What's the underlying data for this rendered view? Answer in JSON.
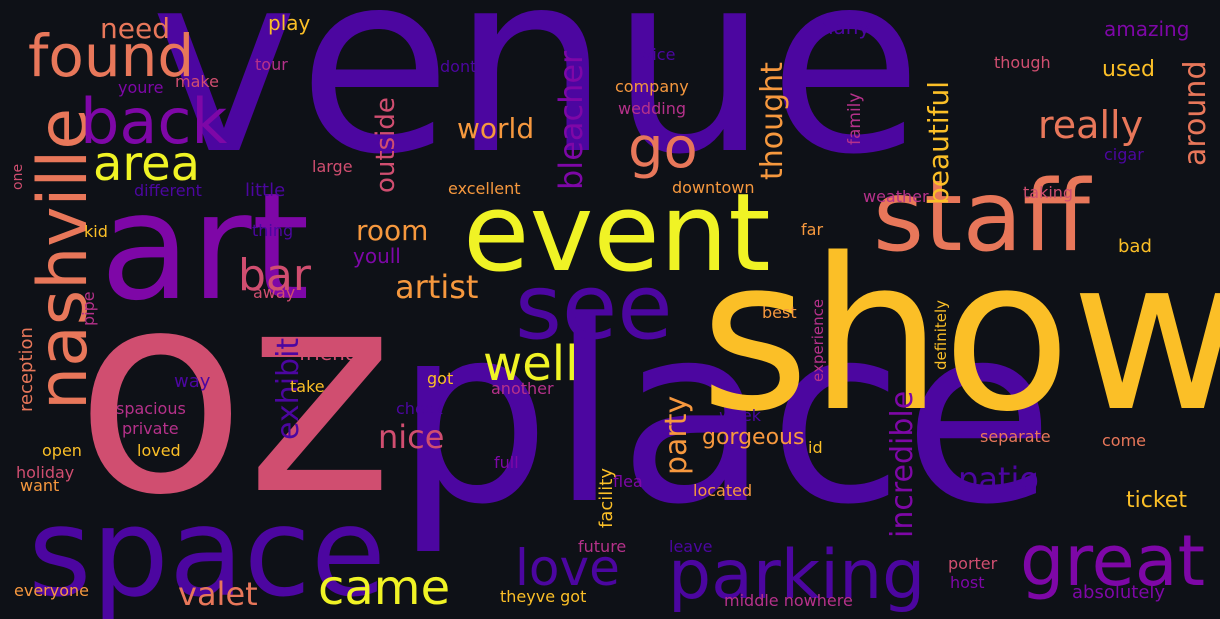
{
  "background": "#0e1117",
  "palette": {
    "indigo": "#4c06a0",
    "purple": "#7e07a7",
    "magenta": "#b5318a",
    "rose": "#d04e70",
    "coral": "#e8775a",
    "orange": "#f6983e",
    "gold": "#fbbf27",
    "yellow": "#f0f325"
  },
  "words": [
    {
      "text": "venue",
      "color": "indigo"
    },
    {
      "text": "oz",
      "color": "rose"
    },
    {
      "text": "place",
      "color": "indigo"
    },
    {
      "text": "show",
      "color": "gold"
    },
    {
      "text": "art",
      "color": "purple"
    },
    {
      "text": "space",
      "color": "indigo"
    },
    {
      "text": "event",
      "color": "yellow"
    },
    {
      "text": "staff",
      "color": "coral"
    },
    {
      "text": "see",
      "color": "indigo"
    },
    {
      "text": "parking",
      "color": "indigo"
    },
    {
      "text": "great",
      "color": "purple"
    },
    {
      "text": "nashville",
      "color": "coral"
    },
    {
      "text": "found",
      "color": "coral"
    },
    {
      "text": "back",
      "color": "purple"
    },
    {
      "text": "area",
      "color": "yellow"
    },
    {
      "text": "go",
      "color": "coral"
    },
    {
      "text": "well",
      "color": "yellow"
    },
    {
      "text": "love",
      "color": "indigo"
    },
    {
      "text": "came",
      "color": "yellow"
    },
    {
      "text": "really",
      "color": "coral"
    },
    {
      "text": "bar",
      "color": "rose"
    },
    {
      "text": "room",
      "color": "orange"
    },
    {
      "text": "artist",
      "color": "orange"
    },
    {
      "text": "nice",
      "color": "rose"
    },
    {
      "text": "valet",
      "color": "coral"
    },
    {
      "text": "world",
      "color": "orange"
    },
    {
      "text": "thought",
      "color": "orange"
    },
    {
      "text": "beautiful",
      "color": "gold"
    },
    {
      "text": "bleacher",
      "color": "purple"
    },
    {
      "text": "outside",
      "color": "rose"
    },
    {
      "text": "need",
      "color": "coral"
    },
    {
      "text": "around",
      "color": "coral"
    },
    {
      "text": "incredible",
      "color": "purple"
    },
    {
      "text": "patio",
      "color": "indigo"
    },
    {
      "text": "party",
      "color": "orange"
    },
    {
      "text": "exhibit",
      "color": "indigo"
    },
    {
      "text": "gorgeous",
      "color": "orange"
    },
    {
      "text": "ticket",
      "color": "gold"
    },
    {
      "text": "used",
      "color": "gold"
    },
    {
      "text": "amazing",
      "color": "purple"
    },
    {
      "text": "play",
      "color": "gold"
    },
    {
      "text": "youll",
      "color": "purple"
    },
    {
      "text": "friend",
      "color": "rose"
    },
    {
      "text": "many",
      "color": "indigo"
    },
    {
      "text": "twice",
      "color": "indigo"
    },
    {
      "text": "company",
      "color": "orange"
    },
    {
      "text": "wedding",
      "color": "magenta"
    },
    {
      "text": "family",
      "color": "magenta"
    },
    {
      "text": "though",
      "color": "rose"
    },
    {
      "text": "cigar",
      "color": "indigo"
    },
    {
      "text": "taking",
      "color": "rose"
    },
    {
      "text": "weather",
      "color": "magenta"
    },
    {
      "text": "downtown",
      "color": "orange"
    },
    {
      "text": "excellent",
      "color": "orange"
    },
    {
      "text": "different",
      "color": "indigo"
    },
    {
      "text": "little",
      "color": "indigo"
    },
    {
      "text": "large",
      "color": "rose"
    },
    {
      "text": "make",
      "color": "rose"
    },
    {
      "text": "youre",
      "color": "purple"
    },
    {
      "text": "tour",
      "color": "magenta"
    },
    {
      "text": "dont",
      "color": "indigo"
    },
    {
      "text": "one",
      "color": "rose"
    },
    {
      "text": "kid",
      "color": "gold"
    },
    {
      "text": "thing",
      "color": "indigo"
    },
    {
      "text": "far",
      "color": "orange"
    },
    {
      "text": "bad",
      "color": "gold"
    },
    {
      "text": "away",
      "color": "rose"
    },
    {
      "text": "pipe",
      "color": "magenta"
    },
    {
      "text": "best",
      "color": "orange"
    },
    {
      "text": "experience",
      "color": "magenta"
    },
    {
      "text": "definitely",
      "color": "gold"
    },
    {
      "text": "reception",
      "color": "coral"
    },
    {
      "text": "way",
      "color": "indigo"
    },
    {
      "text": "take",
      "color": "gold"
    },
    {
      "text": "got",
      "color": "gold"
    },
    {
      "text": "another",
      "color": "magenta"
    },
    {
      "text": "check",
      "color": "indigo"
    },
    {
      "text": "spacious",
      "color": "magenta"
    },
    {
      "text": "private",
      "color": "magenta"
    },
    {
      "text": "loved",
      "color": "gold"
    },
    {
      "text": "open",
      "color": "gold"
    },
    {
      "text": "holiday",
      "color": "rose"
    },
    {
      "text": "want",
      "color": "orange"
    },
    {
      "text": "week",
      "color": "indigo"
    },
    {
      "text": "id",
      "color": "gold"
    },
    {
      "text": "separate",
      "color": "coral"
    },
    {
      "text": "come",
      "color": "coral"
    },
    {
      "text": "full",
      "color": "purple"
    },
    {
      "text": "flea",
      "color": "purple"
    },
    {
      "text": "facility",
      "color": "gold"
    },
    {
      "text": "located",
      "color": "orange"
    },
    {
      "text": "future",
      "color": "magenta"
    },
    {
      "text": "leave",
      "color": "indigo"
    },
    {
      "text": "theyve got",
      "color": "gold"
    },
    {
      "text": "middle nowhere",
      "color": "magenta"
    },
    {
      "text": "porter",
      "color": "rose"
    },
    {
      "text": "host",
      "color": "purple"
    },
    {
      "text": "absolutely",
      "color": "purple"
    },
    {
      "text": "everyone",
      "color": "orange"
    }
  ]
}
